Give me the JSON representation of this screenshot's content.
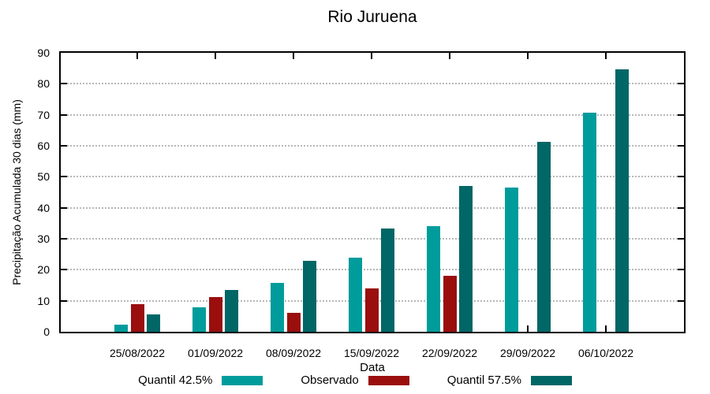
{
  "chart_data": {
    "type": "bar",
    "title": "Rio Juruena",
    "xlabel": "Data",
    "ylabel": "Precipitação Acumulada 30 dias (mm)",
    "ylim": [
      0,
      90
    ],
    "yticks": [
      0,
      10,
      20,
      30,
      40,
      50,
      60,
      70,
      80,
      90
    ],
    "grid": "horizontal-dotted",
    "legend_position": "bottom",
    "categories": [
      "25/08/2022",
      "01/09/2022",
      "08/09/2022",
      "15/09/2022",
      "22/09/2022",
      "29/09/2022",
      "06/10/2022"
    ],
    "series": [
      {
        "name": "Quantil 42.5%",
        "color": "#009c9c",
        "values": [
          2.4,
          8.0,
          15.8,
          24.0,
          34.0,
          46.5,
          70.8
        ]
      },
      {
        "name": "Observado",
        "color": "#9a0e0e",
        "values": [
          9.0,
          11.2,
          6.0,
          14.0,
          18.0,
          null,
          null
        ]
      },
      {
        "name": "Quantil 57.5%",
        "color": "#006666",
        "values": [
          5.6,
          13.5,
          22.8,
          33.3,
          47.0,
          61.2,
          84.6
        ]
      }
    ],
    "colors": {
      "axis": "#000000",
      "grid": "#b8b8b8",
      "background": "#ffffff"
    }
  }
}
